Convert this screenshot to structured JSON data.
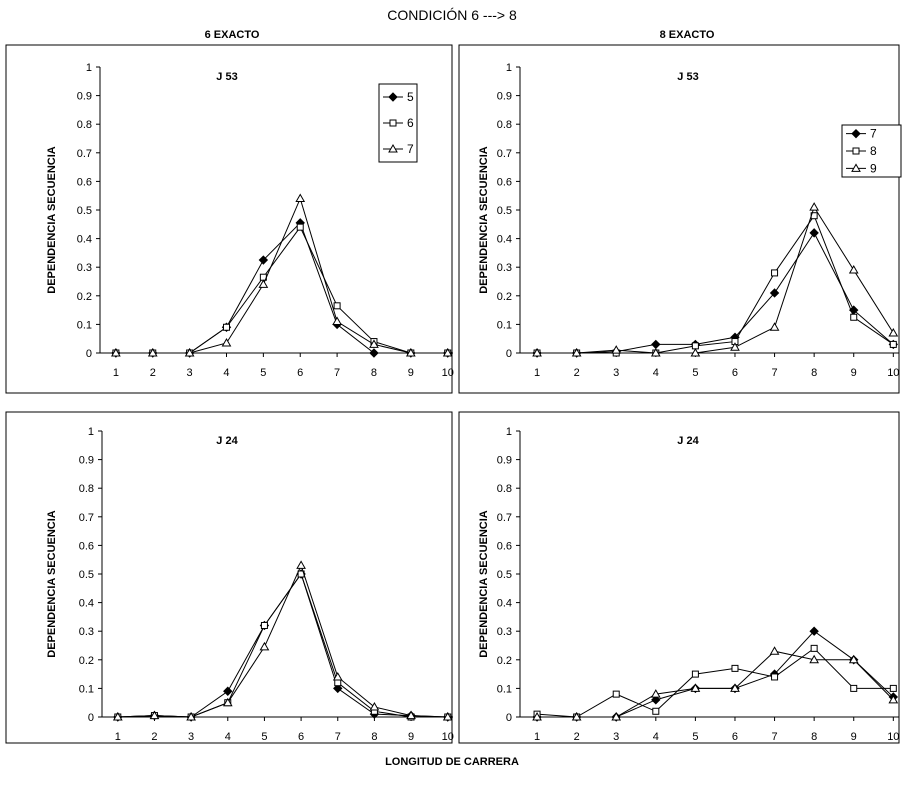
{
  "figure": {
    "title": "CONDICIÓN 6 ---> 8",
    "column_titles": [
      "6 EXACTO",
      "8 EXACTO"
    ],
    "xlabel": "LONGITUD DE CARRERA"
  },
  "chart_data": [
    {
      "type": "line",
      "title": "J 53",
      "ylabel": "DEPENDENCIA SECUENCIA",
      "x": [
        1,
        2,
        3,
        4,
        5,
        6,
        7,
        8,
        9,
        10
      ],
      "xlim": [
        1,
        10
      ],
      "ylim": [
        0,
        1
      ],
      "yticks": [
        "0",
        "0.1",
        "0.2",
        "0.3",
        "0.4",
        "0.5",
        "0.6",
        "0.7",
        "0.8",
        "0.9",
        "1"
      ],
      "legend_position": "top-right",
      "series": [
        {
          "name": "5",
          "marker": "diamond",
          "values": [
            0,
            0,
            0,
            0.09,
            0.325,
            0.455,
            0.1,
            0,
            0,
            0
          ]
        },
        {
          "name": "6",
          "marker": "square",
          "values": [
            0,
            0,
            0,
            0.09,
            0.265,
            0.44,
            0.165,
            0.04,
            0,
            0
          ]
        },
        {
          "name": "7",
          "marker": "triangle",
          "values": [
            0,
            0,
            0,
            0.035,
            0.24,
            0.54,
            0.11,
            0.03,
            0,
            0
          ]
        }
      ]
    },
    {
      "type": "line",
      "title": "J 53",
      "ylabel": "DEPENDENCIA SECUENCIA",
      "x": [
        1,
        2,
        3,
        4,
        5,
        6,
        7,
        8,
        9,
        10
      ],
      "xlim": [
        1,
        10
      ],
      "ylim": [
        0,
        1
      ],
      "yticks": [
        "0",
        "0.1",
        "0.2",
        "0.3",
        "0.4",
        "0.5",
        "0.6",
        "0.7",
        "0.8",
        "0.9",
        "1"
      ],
      "legend_position": "top-right",
      "series": [
        {
          "name": "7",
          "marker": "diamond",
          "values": [
            0,
            0,
            0.005,
            0.03,
            0.03,
            0.055,
            0.21,
            0.42,
            0.15,
            0.03
          ]
        },
        {
          "name": "8",
          "marker": "square",
          "values": [
            0,
            0,
            0,
            0,
            0.025,
            0.04,
            0.28,
            0.48,
            0.125,
            0.03
          ]
        },
        {
          "name": "9",
          "marker": "triangle",
          "values": [
            0,
            0,
            0.01,
            0,
            0,
            0.02,
            0.09,
            0.51,
            0.29,
            0.07
          ]
        }
      ]
    },
    {
      "type": "line",
      "title": "J 24",
      "ylabel": "DEPENDENCIA SECUENCIA",
      "x": [
        1,
        2,
        3,
        4,
        5,
        6,
        7,
        8,
        9,
        10
      ],
      "xlim": [
        1,
        10
      ],
      "ylim": [
        0,
        1
      ],
      "yticks": [
        "0",
        "0.1",
        "0.2",
        "0.3",
        "0.4",
        "0.5",
        "0.6",
        "0.7",
        "0.8",
        "0.9",
        "1"
      ],
      "legend_position": "none",
      "series": [
        {
          "name": "5",
          "marker": "diamond",
          "values": [
            0,
            0.005,
            0,
            0.09,
            0.32,
            0.5,
            0.1,
            0.01,
            0.005,
            0
          ]
        },
        {
          "name": "6",
          "marker": "square",
          "values": [
            0,
            0.005,
            0,
            0.05,
            0.32,
            0.5,
            0.12,
            0.02,
            0,
            0
          ]
        },
        {
          "name": "7",
          "marker": "triangle",
          "values": [
            0,
            0.005,
            0,
            0.05,
            0.245,
            0.53,
            0.14,
            0.035,
            0.005,
            0
          ]
        }
      ]
    },
    {
      "type": "line",
      "title": "J 24",
      "ylabel": "DEPENDENCIA SECUENCIA",
      "x": [
        1,
        2,
        3,
        4,
        5,
        6,
        7,
        8,
        9,
        10
      ],
      "xlim": [
        1,
        10
      ],
      "ylim": [
        0,
        1
      ],
      "yticks": [
        "0",
        "0.1",
        "0.2",
        "0.3",
        "0.4",
        "0.5",
        "0.6",
        "0.7",
        "0.8",
        "0.9",
        "1"
      ],
      "legend_position": "none",
      "series": [
        {
          "name": "7",
          "marker": "diamond",
          "values": [
            0,
            0,
            0,
            0.06,
            0.1,
            0.1,
            0.15,
            0.3,
            0.2,
            0.07
          ]
        },
        {
          "name": "8",
          "marker": "square",
          "values": [
            0.01,
            0,
            0.08,
            0.02,
            0.15,
            0.17,
            0.14,
            0.24,
            0.1,
            0.1
          ]
        },
        {
          "name": "9",
          "marker": "triangle",
          "values": [
            0,
            0,
            0,
            0.08,
            0.1,
            0.1,
            0.23,
            0.2,
            0.2,
            0.06
          ]
        }
      ]
    }
  ]
}
